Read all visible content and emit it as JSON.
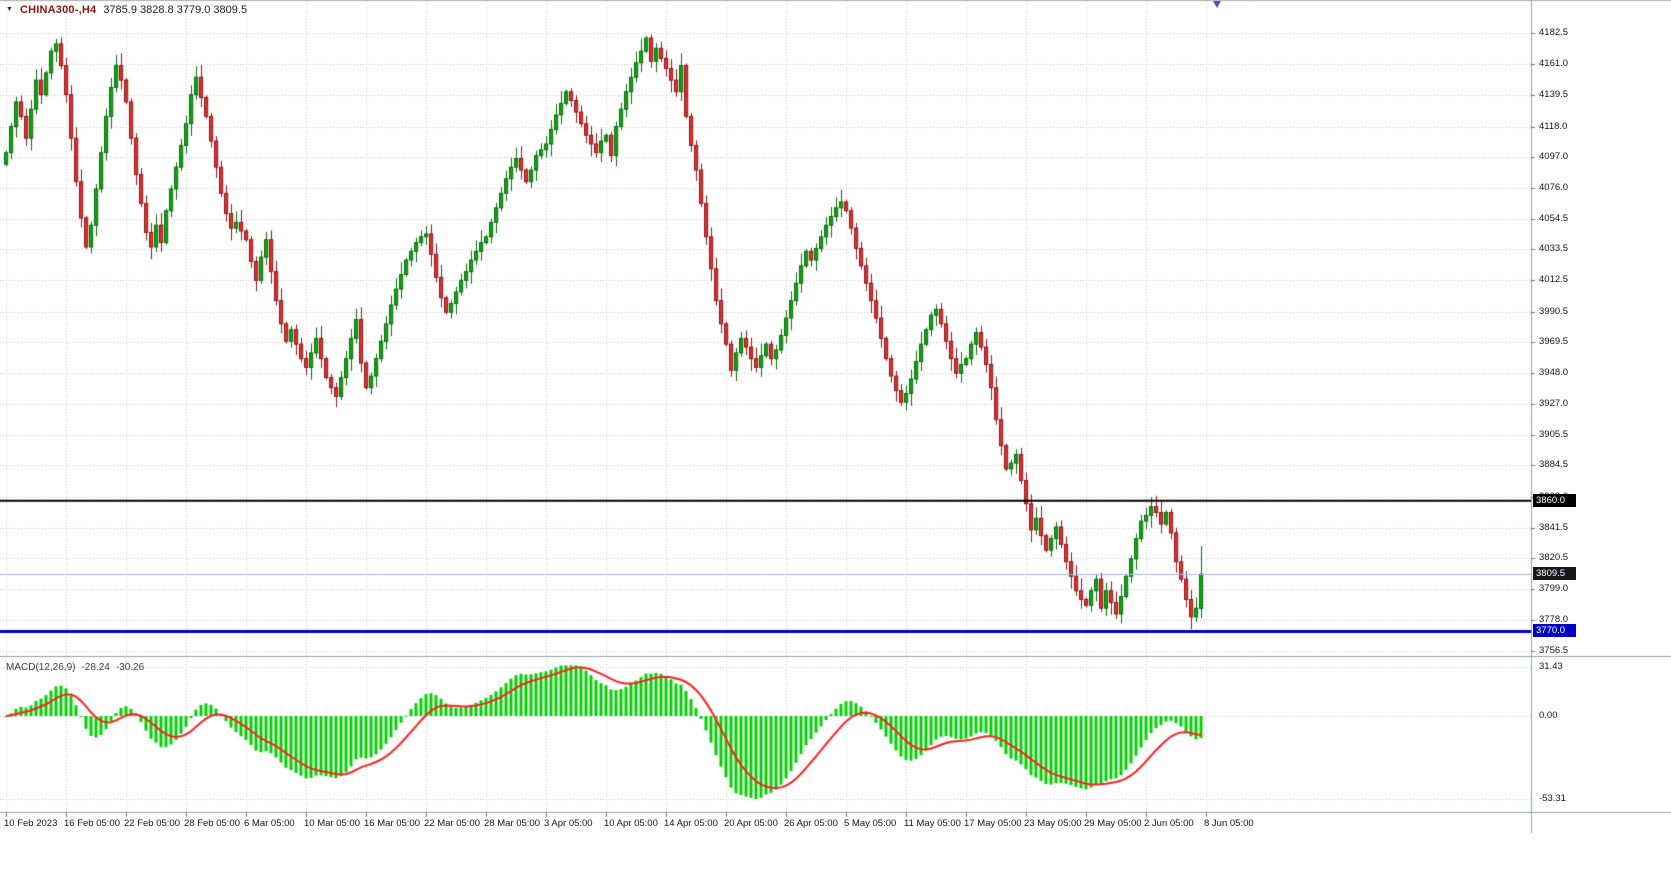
{
  "header": {
    "symbol": "CHINA300-,H4",
    "ohlc_text": "3785.9 3828.8 3779.0 3809.5"
  },
  "chart_data": {
    "type": "candlestick",
    "symbol": "CHINA300-",
    "timeframe": "H4",
    "title": "CHINA300-,H4",
    "grid": true,
    "price_ylim": [
      3756.5,
      4182.5
    ],
    "current_candle": {
      "open": 3785.9,
      "high": 3828.8,
      "low": 3779.0,
      "close": 3809.5
    },
    "price_axis_ticks": [
      "4182.5",
      "4161.0",
      "4139.5",
      "4118.0",
      "4097.0",
      "4076.0",
      "4054.5",
      "4033.5",
      "4012.5",
      "3990.5",
      "3969.5",
      "3948.0",
      "3927.0",
      "3905.5",
      "3884.5",
      "3863.0",
      "3841.5",
      "3820.5",
      "3799.0",
      "3778.0",
      "3756.5"
    ],
    "time_axis_ticks": [
      "10 Feb 2023",
      "16 Feb 05:00",
      "22 Feb 05:00",
      "28 Feb 05:00",
      "6 Mar 05:00",
      "10 Mar 05:00",
      "16 Mar 05:00",
      "22 Mar 05:00",
      "28 Mar 05:00",
      "3 Apr 05:00",
      "10 Apr 05:00",
      "14 Apr 05:00",
      "20 Apr 05:00",
      "26 Apr 05:00",
      "5 May 05:00",
      "11 May 05:00",
      "17 May 05:00",
      "23 May 05:00",
      "29 May 05:00",
      "2 Jun 05:00",
      "8 Jun 05:00"
    ],
    "closes": [
      4100,
      4118,
      4135,
      4125,
      4110,
      4130,
      4150,
      4140,
      4155,
      4170,
      4175,
      4160,
      4140,
      4110,
      4080,
      4055,
      4035,
      4050,
      4075,
      4100,
      4125,
      4145,
      4160,
      4150,
      4135,
      4110,
      4085,
      4065,
      4045,
      4035,
      4050,
      4038,
      4060,
      4075,
      4090,
      4105,
      4120,
      4140,
      4152,
      4138,
      4125,
      4108,
      4090,
      4072,
      4058,
      4048,
      4052,
      4046,
      4040,
      4025,
      4012,
      4028,
      4040,
      4018,
      3998,
      3982,
      3970,
      3978,
      3968,
      3958,
      3952,
      3962,
      3972,
      3958,
      3945,
      3938,
      3932,
      3945,
      3958,
      3972,
      3985,
      3955,
      3938,
      3946,
      3958,
      3970,
      3982,
      3995,
      4006,
      4016,
      4026,
      4032,
      4038,
      4042,
      4044,
      4030,
      4014,
      4000,
      3990,
      3996,
      4004,
      4012,
      4018,
      4026,
      4032,
      4038,
      4042,
      4052,
      4062,
      4072,
      4082,
      4090,
      4096,
      4088,
      4080,
      4088,
      4098,
      4102,
      4106,
      4116,
      4126,
      4134,
      4142,
      4136,
      4128,
      4120,
      4112,
      4106,
      4100,
      4108,
      4112,
      4098,
      4118,
      4130,
      4142,
      4152,
      4162,
      4170,
      4179,
      4163,
      4172,
      4165,
      4158,
      4150,
      4142,
      4160,
      4125,
      4105,
      4088,
      4065,
      4042,
      4020,
      3998,
      3982,
      3968,
      3950,
      3962,
      3972,
      3966,
      3958,
      3952,
      3960,
      3968,
      3958,
      3964,
      3974,
      3986,
      3998,
      4010,
      4022,
      4032,
      4026,
      4034,
      4042,
      4050,
      4056,
      4062,
      4066,
      4060,
      4048,
      4034,
      4022,
      4010,
      3998,
      3986,
      3972,
      3958,
      3946,
      3936,
      3928,
      3934,
      3944,
      3956,
      3968,
      3978,
      3988,
      3992,
      3982,
      3970,
      3958,
      3948,
      3954,
      3958,
      3968,
      3976,
      3966,
      3954,
      3938,
      3916,
      3898,
      3882,
      3886,
      3892,
      3874,
      3858,
      3840,
      3848,
      3836,
      3826,
      3834,
      3842,
      3830,
      3818,
      3808,
      3798,
      3792,
      3788,
      3798,
      3806,
      3786,
      3798,
      3790,
      3782,
      3794,
      3808,
      3820,
      3834,
      3846,
      3850,
      3856,
      3852,
      3844,
      3852,
      3838,
      3818,
      3806,
      3792,
      3780,
      3786,
      3809.5
    ],
    "levels": {
      "black_hline": 3860.0,
      "blue_hline": 3770.0,
      "current_price": 3809.5
    },
    "price_tags": [
      {
        "label": "3860.0",
        "price": 3860.0,
        "bg": "#000000"
      },
      {
        "label": "3809.5",
        "price": 3809.5,
        "bg": "#16161e"
      },
      {
        "label": "3770.0",
        "price": 3770.0,
        "bg": "#0000c8"
      }
    ],
    "macd": {
      "label": "MACD(12,26,9)",
      "macd_value": "-28.24",
      "signal_value": "-30.26",
      "axis_labels": [
        "31.43",
        "0.00",
        "-53.31"
      ],
      "axis_values": [
        31.43,
        0,
        -53.31
      ],
      "min": -53.31,
      "max": 31.43
    }
  },
  "colors": {
    "background": "#ffffff",
    "grid": "#c9c9d1",
    "up_fill": "#12a312",
    "up_border": "#0a6d0a",
    "down_fill": "#dd3232",
    "down_border": "#8c1818",
    "macd_hist": "#00d200",
    "macd_signal": "#ff2020",
    "black_line": "#000000",
    "blue_line": "#0000c8",
    "current_line": "#a9b7d9",
    "separator": "#9aa0a6",
    "axis_text": "#141414",
    "tag_text": "#ffffff"
  }
}
